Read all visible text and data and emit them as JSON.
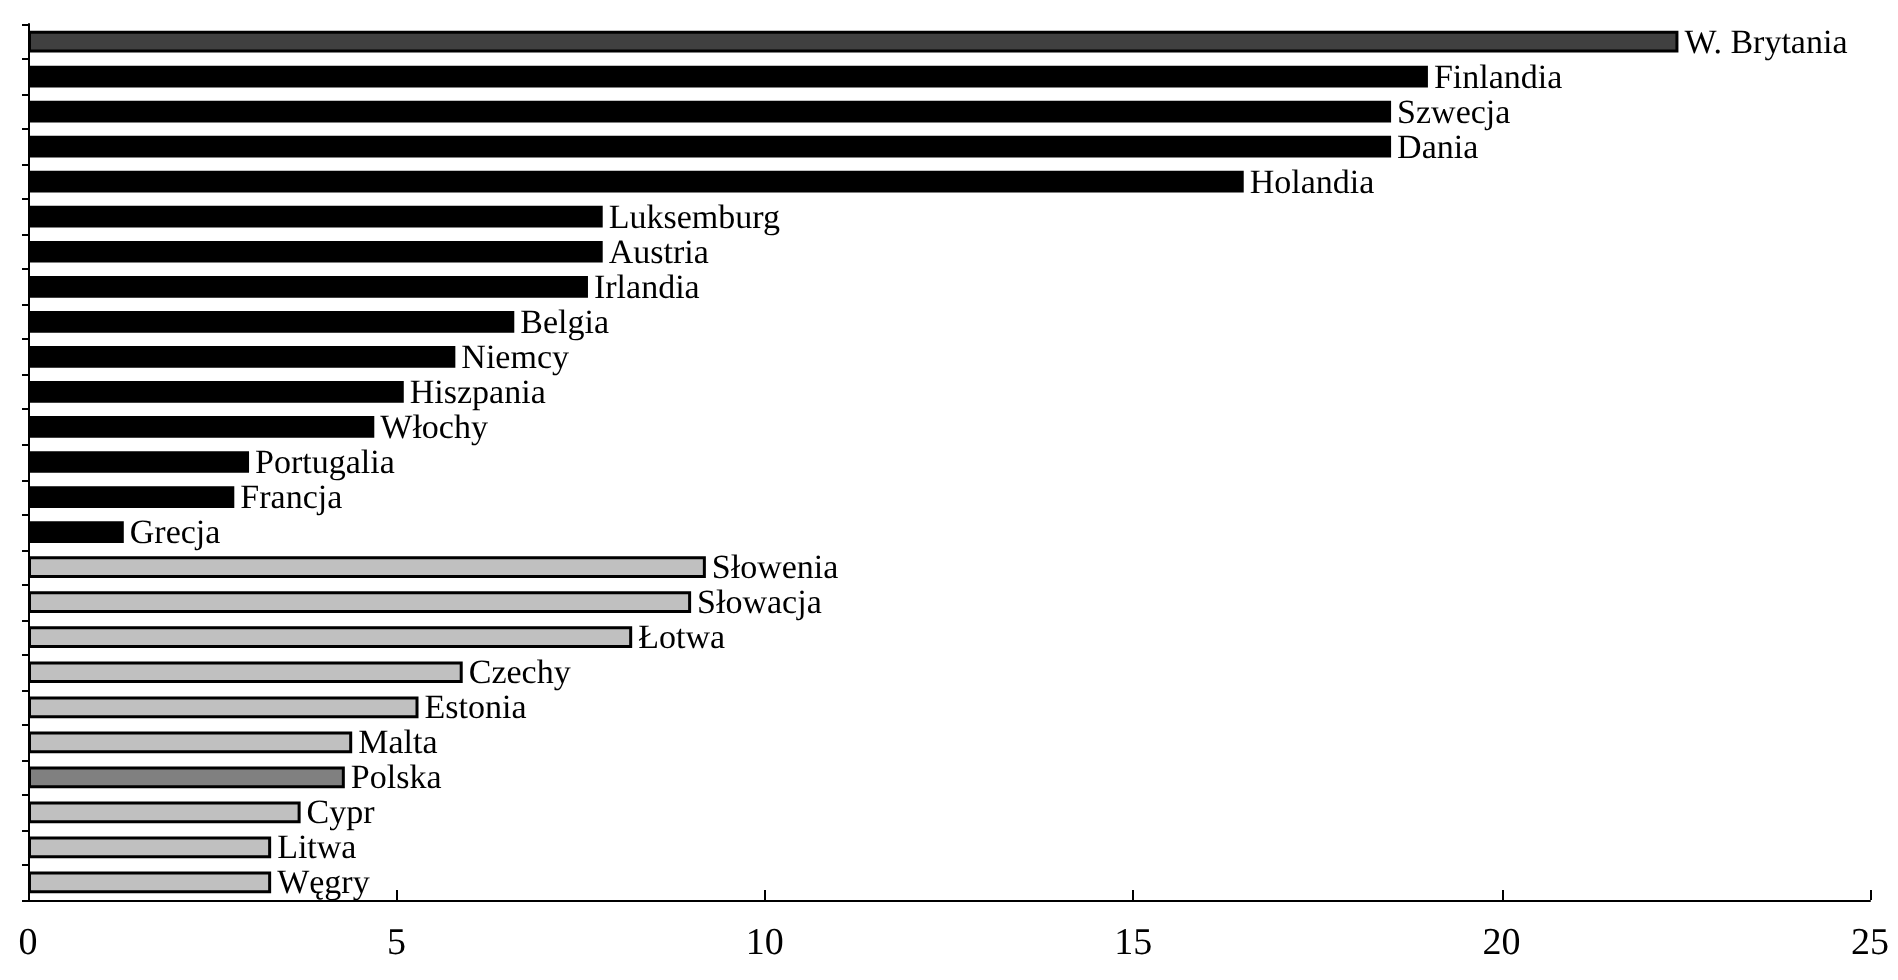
{
  "chart_data": {
    "type": "bar",
    "orientation": "horizontal",
    "categories": [
      "W. Brytania",
      "Finlandia",
      "Szwecja",
      "Dania",
      "Holandia",
      "Luksemburg",
      "Austria",
      "Irlandia",
      "Belgia",
      "Niemcy",
      "Hiszpania",
      "Włochy",
      "Portugalia",
      "Francja",
      "Grecja",
      "Słowenia",
      "Słowacja",
      "Łotwa",
      "Czechy",
      "Estonia",
      "Malta",
      "Polska",
      "Cypr",
      "Litwa",
      "Węgry"
    ],
    "values": [
      22.4,
      19.0,
      18.5,
      18.5,
      16.5,
      7.8,
      7.8,
      7.6,
      6.6,
      5.8,
      5.1,
      4.7,
      3.0,
      2.8,
      1.3,
      9.2,
      9.0,
      8.2,
      5.9,
      5.3,
      4.4,
      4.3,
      3.7,
      3.3,
      3.3
    ],
    "colors": [
      "#404040",
      "#000000",
      "#000000",
      "#000000",
      "#000000",
      "#000000",
      "#000000",
      "#000000",
      "#000000",
      "#000000",
      "#000000",
      "#000000",
      "#000000",
      "#000000",
      "#000000",
      "#c0c0c0",
      "#c0c0c0",
      "#c0c0c0",
      "#c0c0c0",
      "#c0c0c0",
      "#c0c0c0",
      "#808080",
      "#c0c0c0",
      "#c0c0c0",
      "#c0c0c0"
    ],
    "xlim": [
      0,
      25
    ],
    "xticks": [
      0,
      5,
      10,
      15,
      20,
      25
    ],
    "tick_labels": "x"
  }
}
